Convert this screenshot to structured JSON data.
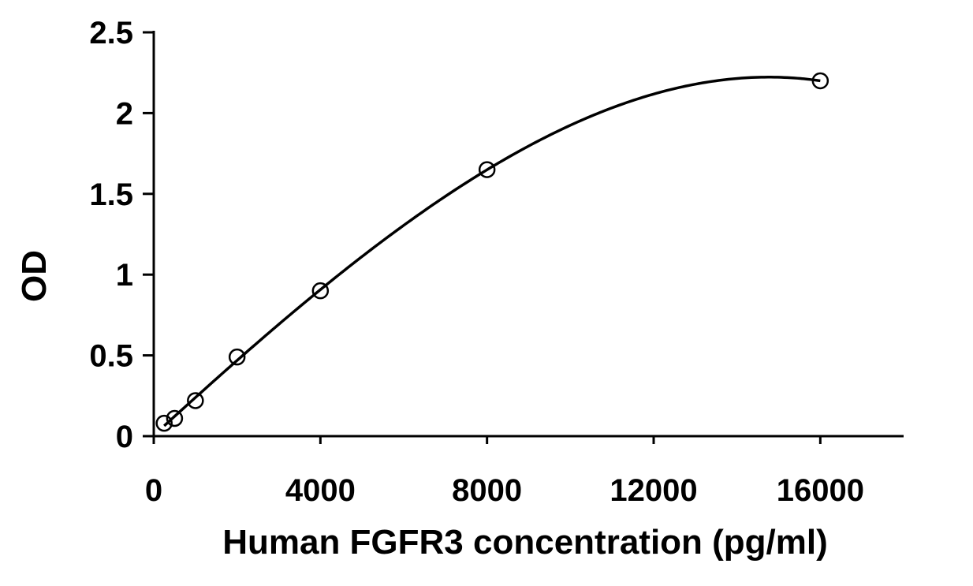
{
  "chart_data": {
    "type": "scatter",
    "title": "",
    "xlabel": "Human FGFR3 concentration (pg/ml)",
    "ylabel": "OD",
    "xlim": [
      0,
      18000
    ],
    "ylim": [
      0,
      2.5
    ],
    "x_ticks": [
      0,
      4000,
      8000,
      12000,
      16000
    ],
    "x_tick_labels": [
      "0",
      "4000",
      "8000",
      "12000",
      "16000"
    ],
    "y_ticks": [
      0,
      0.5,
      1,
      1.5,
      2,
      2.5
    ],
    "y_tick_labels": [
      "0",
      "0.5",
      "1",
      "1.5",
      "2",
      "2.5"
    ],
    "grid": false,
    "legend": "none",
    "series": [
      {
        "marker": "open-circle",
        "x": [
          250,
          500,
          1000,
          2000,
          4000,
          8000,
          16000
        ],
        "y": [
          0.08,
          0.11,
          0.22,
          0.49,
          0.9,
          1.65,
          2.2
        ]
      }
    ],
    "trendline": {
      "type": "polynomial",
      "x_range": [
        250,
        16000
      ]
    },
    "colors": {
      "axis": "#000000",
      "curve": "#000000",
      "marker": "#000000"
    }
  }
}
